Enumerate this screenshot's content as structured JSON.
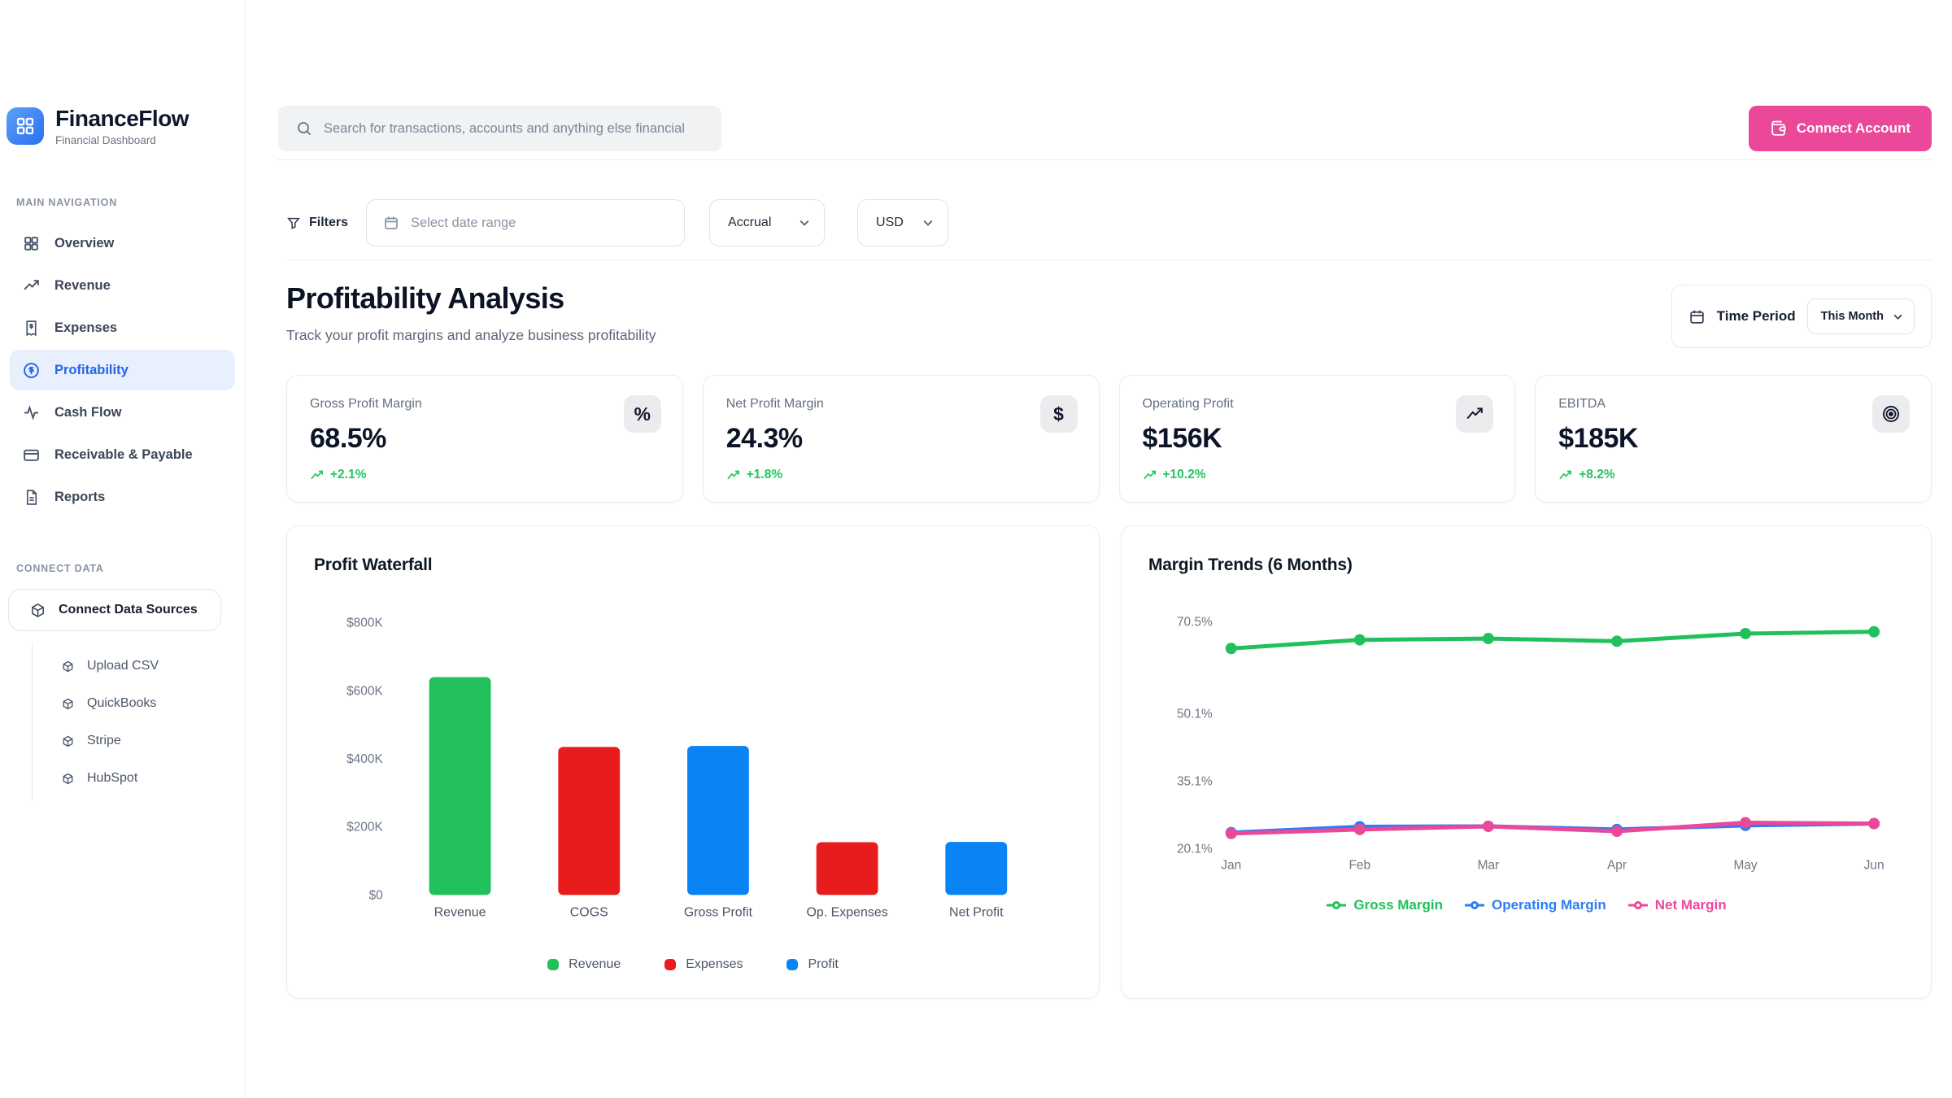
{
  "app": {
    "name": "FinanceFlow",
    "subtitle": "Financial Dashboard"
  },
  "header": {
    "search_placeholder": "Search for transactions, accounts and anything else financial",
    "connect_account_label": "Connect Account"
  },
  "sidebar": {
    "main_nav_label": "MAIN NAVIGATION",
    "items": [
      {
        "label": "Overview"
      },
      {
        "label": "Revenue"
      },
      {
        "label": "Expenses"
      },
      {
        "label": "Profitability",
        "active": true
      },
      {
        "label": "Cash Flow"
      },
      {
        "label": "Receivable & Payable"
      },
      {
        "label": "Reports"
      }
    ],
    "connect_data_label": "CONNECT DATA",
    "connect_sources_label": "Connect Data Sources",
    "sources": [
      {
        "label": "Upload CSV"
      },
      {
        "label": "QuickBooks"
      },
      {
        "label": "Stripe"
      },
      {
        "label": "HubSpot"
      }
    ]
  },
  "filters": {
    "filters_label": "Filters",
    "date_range_placeholder": "Select date range",
    "accounting_basis": "Accrual",
    "currency": "USD"
  },
  "page": {
    "title": "Profitability Analysis",
    "subtitle": "Track your profit margins and analyze business profitability",
    "time_period_label": "Time Period",
    "time_period_value": "This Month"
  },
  "kpis": [
    {
      "label": "Gross Profit Margin",
      "value": "68.5%",
      "change": "+2.1%",
      "icon": "percent-icon"
    },
    {
      "label": "Net Profit Margin",
      "value": "24.3%",
      "change": "+1.8%",
      "icon": "dollar-icon"
    },
    {
      "label": "Operating Profit",
      "value": "$156K",
      "change": "+10.2%",
      "icon": "trending-up-icon"
    },
    {
      "label": "EBITDA",
      "value": "$185K",
      "change": "+8.2%",
      "icon": "target-icon"
    }
  ],
  "colors": {
    "accent_blue": "#2563eb",
    "pink": "#ec4899",
    "green": "#22c55e",
    "red": "#e81c1c",
    "bar_blue": "#0a84f4",
    "positive_change": "#22c55e"
  },
  "chart_data": [
    {
      "type": "bar",
      "title": "Profit Waterfall",
      "categories": [
        "Revenue",
        "COGS",
        "Gross Profit",
        "Op. Expenses",
        "Net Profit"
      ],
      "values": [
        640000,
        435000,
        438000,
        155000,
        156000
      ],
      "bar_colors": [
        "#22c05c",
        "#e81c1c",
        "#0a84f4",
        "#e81c1c",
        "#0a84f4"
      ],
      "ylabel_ticks": [
        "$0",
        "$200K",
        "$400K",
        "$600K",
        "$800K"
      ],
      "ylim": [
        0,
        800000
      ],
      "grid": false,
      "legend_position": "bottom",
      "legend": [
        {
          "label": "Revenue",
          "color": "#22c05c"
        },
        {
          "label": "Expenses",
          "color": "#e81c1c"
        },
        {
          "label": "Profit",
          "color": "#0a84f4"
        }
      ]
    },
    {
      "type": "line",
      "title": "Margin Trends (6 Months)",
      "x": [
        "Jan",
        "Feb",
        "Mar",
        "Apr",
        "May",
        "Jun"
      ],
      "y_ticks": [
        {
          "label": "70.5%",
          "value": 70.5
        },
        {
          "label": "50.1%",
          "value": 50.1
        },
        {
          "label": "35.1%",
          "value": 35.1
        },
        {
          "label": "20.1%",
          "value": 20.1
        }
      ],
      "ylim": [
        18.5,
        75
      ],
      "grid": false,
      "legend_position": "bottom",
      "series": [
        {
          "name": "Gross Margin",
          "color": "#22c05c",
          "values": [
            64.6,
            66.5,
            66.8,
            66.2,
            67.9,
            68.3
          ]
        },
        {
          "name": "Operating Margin",
          "color": "#2e7cf6",
          "values": [
            23.7,
            25.0,
            25.1,
            24.4,
            25.3,
            25.7
          ]
        },
        {
          "name": "Net Margin",
          "color": "#ec4899",
          "values": [
            23.5,
            24.4,
            25.1,
            24.0,
            25.9,
            25.7
          ]
        }
      ]
    }
  ]
}
